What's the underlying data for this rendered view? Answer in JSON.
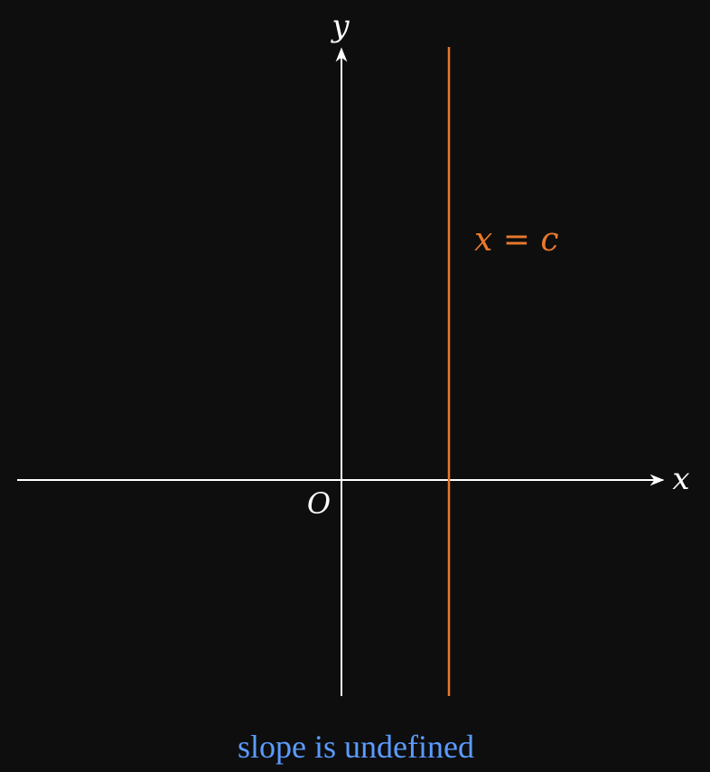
{
  "colors": {
    "background": "#0e0e0e",
    "axis": "#ffffff",
    "line": "#e8792b",
    "caption": "#5b9bff"
  },
  "axes": {
    "x_label": "x",
    "y_label": "y",
    "origin_label": "O"
  },
  "vertical_line": {
    "label": "x = c"
  },
  "caption": {
    "text": "slope is undefined"
  }
}
